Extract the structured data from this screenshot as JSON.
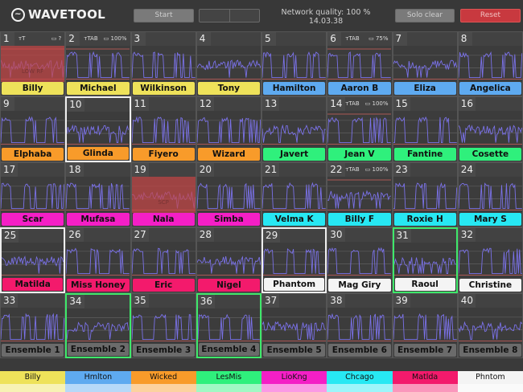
{
  "header": {
    "app_name": "WAVETOOL",
    "start_label": "Start",
    "network_quality": "Network quality: 100 %",
    "time": "14.03.38",
    "solo_clear_label": "Solo clear",
    "reset_label": "Reset"
  },
  "colors": {
    "yellow": "#eee25a",
    "blue": "#5eaaf0",
    "orange": "#f89b2a",
    "green": "#2ff07c",
    "pink": "#f41fc6",
    "cyan": "#27e8f3",
    "red": "#f31a6c",
    "white": "#f4f4f4",
    "gray": "#6b6b6b",
    "wave": "#7b72ea",
    "threshold": "#d0605c"
  },
  "tiles": [
    {
      "n": "1",
      "name": "Billy",
      "c": "yellow",
      "ant": "T",
      "bat": "?",
      "overlay": "LOW RF"
    },
    {
      "n": "2",
      "name": "Michael",
      "c": "yellow",
      "ant": "TAB",
      "bat": "100%"
    },
    {
      "n": "3",
      "name": "Wilkinson",
      "c": "yellow"
    },
    {
      "n": "4",
      "name": "Tony",
      "c": "yellow"
    },
    {
      "n": "5",
      "name": "Hamilton",
      "c": "blue"
    },
    {
      "n": "6",
      "name": "Aaron B",
      "c": "blue",
      "ant": "TAB",
      "bat": "75%"
    },
    {
      "n": "7",
      "name": "Eliza",
      "c": "blue"
    },
    {
      "n": "8",
      "name": "Angelica",
      "c": "blue"
    },
    {
      "n": "9",
      "name": "Elphaba",
      "c": "orange"
    },
    {
      "n": "10",
      "name": "Glinda",
      "c": "orange",
      "hl": "white"
    },
    {
      "n": "11",
      "name": "Fiyero",
      "c": "orange"
    },
    {
      "n": "12",
      "name": "Wizard",
      "c": "orange"
    },
    {
      "n": "13",
      "name": "Javert",
      "c": "green"
    },
    {
      "n": "14",
      "name": "Jean V",
      "c": "green",
      "ant": "TAB",
      "bat": "100%"
    },
    {
      "n": "15",
      "name": "Fantine",
      "c": "green"
    },
    {
      "n": "16",
      "name": "Cosette",
      "c": "green"
    },
    {
      "n": "17",
      "name": "Scar",
      "c": "pink"
    },
    {
      "n": "18",
      "name": "Mufasa",
      "c": "pink"
    },
    {
      "n": "19",
      "name": "Nala",
      "c": "pink",
      "overlay": "SCP"
    },
    {
      "n": "20",
      "name": "Simba",
      "c": "pink"
    },
    {
      "n": "21",
      "name": "Velma K",
      "c": "cyan"
    },
    {
      "n": "22",
      "name": "Billy F",
      "c": "cyan",
      "ant": "TAB",
      "bat": "100%"
    },
    {
      "n": "23",
      "name": "Roxie H",
      "c": "cyan"
    },
    {
      "n": "24",
      "name": "Mary S",
      "c": "cyan"
    },
    {
      "n": "25",
      "name": "Matilda",
      "c": "red",
      "hl": "white"
    },
    {
      "n": "26",
      "name": "Miss Honey",
      "c": "red"
    },
    {
      "n": "27",
      "name": "Eric",
      "c": "red"
    },
    {
      "n": "28",
      "name": "Nigel",
      "c": "red"
    },
    {
      "n": "29",
      "name": "Phantom",
      "c": "white",
      "hl": "white"
    },
    {
      "n": "30",
      "name": "Mag Giry",
      "c": "white"
    },
    {
      "n": "31",
      "name": "Raoul",
      "c": "white",
      "hl": "green"
    },
    {
      "n": "32",
      "name": "Christine",
      "c": "white"
    },
    {
      "n": "33",
      "name": "Ensemble 1",
      "c": "gray"
    },
    {
      "n": "34",
      "name": "Ensemble 2",
      "c": "gray",
      "hl": "green"
    },
    {
      "n": "35",
      "name": "Ensemble 3",
      "c": "gray"
    },
    {
      "n": "36",
      "name": "Ensemble 4",
      "c": "gray",
      "hl": "green"
    },
    {
      "n": "37",
      "name": "Ensemble 5",
      "c": "gray"
    },
    {
      "n": "38",
      "name": "Ensemble 6",
      "c": "gray"
    },
    {
      "n": "39",
      "name": "Ensemble 7",
      "c": "gray"
    },
    {
      "n": "40",
      "name": "Ensemble 8",
      "c": "gray"
    }
  ],
  "groups": [
    {
      "name": "Billy",
      "c": "yellow"
    },
    {
      "name": "Hmlton",
      "c": "blue"
    },
    {
      "name": "Wicked",
      "c": "orange"
    },
    {
      "name": "LesMis",
      "c": "green"
    },
    {
      "name": "LioKng",
      "c": "pink"
    },
    {
      "name": "Chcago",
      "c": "cyan"
    },
    {
      "name": "Matlda",
      "c": "red"
    },
    {
      "name": "Phntom",
      "c": "white"
    }
  ]
}
